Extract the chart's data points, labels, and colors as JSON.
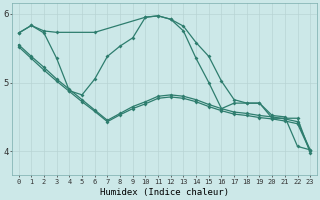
{
  "xlabel": "Humidex (Indice chaleur)",
  "bg_color": "#cce8e8",
  "line_color": "#2e7d6e",
  "grid_color": "#aacccc",
  "xlim": [
    -0.5,
    23.5
  ],
  "ylim": [
    3.65,
    6.15
  ],
  "yticks": [
    4,
    5,
    6
  ],
  "xticks": [
    0,
    1,
    2,
    3,
    4,
    5,
    6,
    7,
    8,
    9,
    10,
    11,
    12,
    13,
    14,
    15,
    16,
    17,
    18,
    19,
    20,
    21,
    22,
    23
  ],
  "line1_x": [
    0,
    1,
    2,
    3,
    6,
    10,
    11,
    12,
    13,
    14,
    15,
    16,
    17,
    18,
    19,
    20,
    21,
    22,
    23
  ],
  "line1_y": [
    5.72,
    5.83,
    5.75,
    5.73,
    5.73,
    5.95,
    5.97,
    5.92,
    5.82,
    5.58,
    5.38,
    5.02,
    4.75,
    4.7,
    4.7,
    4.52,
    4.5,
    4.07,
    4.02
  ],
  "line2_x": [
    0,
    1,
    2,
    3,
    4,
    5,
    6,
    7,
    8,
    9,
    10,
    11,
    12,
    13,
    14,
    15,
    16,
    17,
    18,
    19,
    20,
    21,
    22,
    23
  ],
  "line2_y": [
    5.55,
    5.38,
    5.22,
    5.05,
    4.9,
    4.75,
    4.6,
    4.45,
    4.55,
    4.65,
    4.72,
    4.8,
    4.82,
    4.8,
    4.75,
    4.68,
    4.62,
    4.57,
    4.55,
    4.52,
    4.5,
    4.47,
    4.43,
    4.02
  ],
  "line3_x": [
    0,
    1,
    2,
    3,
    4,
    5,
    6,
    7,
    8,
    9,
    10,
    11,
    12,
    13,
    14,
    15,
    16,
    17,
    18,
    19,
    20,
    21,
    22,
    23
  ],
  "line3_y": [
    5.52,
    5.35,
    5.18,
    5.02,
    4.87,
    4.72,
    4.58,
    4.43,
    4.53,
    4.62,
    4.69,
    4.77,
    4.79,
    4.77,
    4.72,
    4.65,
    4.59,
    4.54,
    4.52,
    4.49,
    4.47,
    4.44,
    4.4,
    4.0
  ],
  "line4_x": [
    0,
    1,
    2,
    3,
    4,
    5,
    6,
    7,
    8,
    9,
    10,
    11,
    12,
    13,
    14,
    15,
    16,
    17,
    18,
    19,
    20,
    21,
    22,
    23
  ],
  "line4_y": [
    5.72,
    5.83,
    5.72,
    5.35,
    4.88,
    4.82,
    5.05,
    5.38,
    5.53,
    5.65,
    5.95,
    5.97,
    5.92,
    5.75,
    5.35,
    5.0,
    4.62,
    4.7,
    4.7,
    4.7,
    4.48,
    4.48,
    4.48,
    3.98
  ]
}
